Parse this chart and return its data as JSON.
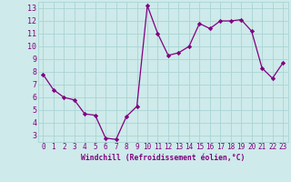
{
  "x": [
    0,
    1,
    2,
    3,
    4,
    5,
    6,
    7,
    8,
    9,
    10,
    11,
    12,
    13,
    14,
    15,
    16,
    17,
    18,
    19,
    20,
    21,
    22,
    23
  ],
  "y": [
    7.8,
    6.6,
    6.0,
    5.8,
    4.7,
    4.6,
    2.8,
    2.7,
    4.5,
    5.3,
    13.2,
    11.0,
    9.3,
    9.5,
    10.0,
    11.8,
    11.4,
    12.0,
    12.0,
    12.1,
    11.2,
    8.3,
    7.5,
    8.7
  ],
  "line_color": "#800080",
  "marker_color": "#800080",
  "bg_color": "#ceeaea",
  "grid_color": "#aad4d4",
  "xlabel": "Windchill (Refroidissement éolien,°C)",
  "xlim": [
    -0.5,
    23.5
  ],
  "ylim": [
    2.5,
    13.5
  ],
  "yticks": [
    3,
    4,
    5,
    6,
    7,
    8,
    9,
    10,
    11,
    12,
    13
  ],
  "xticks": [
    0,
    1,
    2,
    3,
    4,
    5,
    6,
    7,
    8,
    9,
    10,
    11,
    12,
    13,
    14,
    15,
    16,
    17,
    18,
    19,
    20,
    21,
    22,
    23
  ],
  "tick_fontsize": 5.5,
  "xlabel_fontsize": 5.8,
  "linewidth": 0.9,
  "markersize": 2.2
}
